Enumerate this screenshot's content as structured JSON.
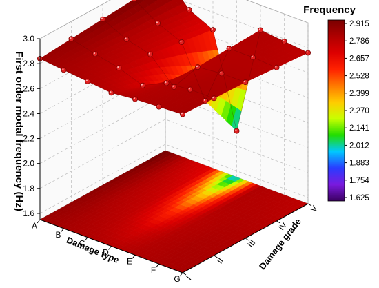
{
  "chart_data": {
    "type": "surface3d",
    "title": "",
    "xlabel": "Damage type",
    "ylabel": "Damage grade",
    "zlabel": "First order modal frequency (Hz)",
    "damage_types": [
      "A",
      "B",
      "C",
      "D",
      "E",
      "F",
      "G"
    ],
    "damage_grades": [
      "I",
      "II",
      "III",
      "IV",
      "V"
    ],
    "z_ticks": [
      "1.6",
      "1.8",
      "2.0",
      "2.2",
      "2.4",
      "2.6",
      "2.8",
      "3.0"
    ],
    "zlim": [
      1.55,
      3.0
    ],
    "frequency_matrix_by_type": [
      [
        2.84,
        2.86,
        2.88,
        2.9,
        2.95
      ],
      [
        2.82,
        2.81,
        2.79,
        2.78,
        2.75
      ],
      [
        2.8,
        2.77,
        2.74,
        2.7,
        2.66
      ],
      [
        2.78,
        2.7,
        2.55,
        2.3,
        1.92
      ],
      [
        2.8,
        2.79,
        2.78,
        2.79,
        2.8
      ],
      [
        2.81,
        2.81,
        2.8,
        2.79,
        2.78
      ],
      [
        2.82,
        2.81,
        2.8,
        2.78,
        2.76
      ]
    ],
    "colorbar": {
      "title": "Frequency",
      "ticks": [
        "2.915",
        "2.786",
        "2.657",
        "2.528",
        "2.399",
        "2.270",
        "2.141",
        "2.012",
        "1.883",
        "1.754",
        "1.625"
      ],
      "colors": [
        "#7a0000",
        "#b00000",
        "#dd0000",
        "#ff2200",
        "#ff7a00",
        "#ffcc00",
        "#c8ff00",
        "#22dd00",
        "#00c8ff",
        "#2a3cff",
        "#7a1adf",
        "#3a0060"
      ]
    }
  }
}
